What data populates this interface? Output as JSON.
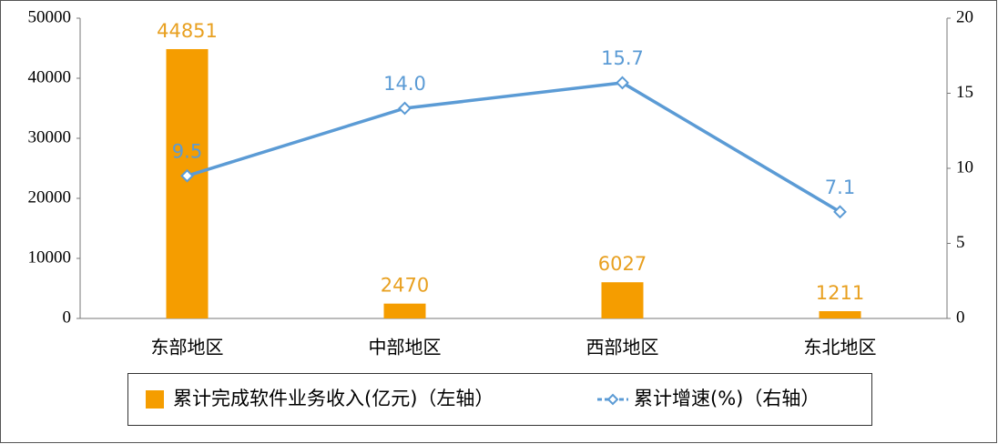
{
  "chart_data": {
    "type": "bar",
    "categories": [
      "东部地区",
      "中部地区",
      "西部地区",
      "东北地区"
    ],
    "series": [
      {
        "name": "累计完成软件业务收入(亿元)（左轴）",
        "type": "bar",
        "color": "#f59d00",
        "values": [
          44851,
          2470,
          6027,
          1211
        ]
      },
      {
        "name": "累计增速(%)（右轴）",
        "type": "line",
        "axis": "y2",
        "color": "#5b9bd5",
        "values": [
          9.5,
          14.0,
          15.7,
          7.1
        ],
        "value_labels": [
          "9.5",
          "14.0",
          "15.7",
          "7.1"
        ]
      }
    ],
    "ylim": [
      0,
      50000
    ],
    "yticks": [
      0,
      10000,
      20000,
      30000,
      40000,
      50000
    ],
    "y2lim": [
      0,
      20
    ],
    "y2ticks": [
      0,
      5,
      10,
      15,
      20
    ],
    "legend": "bottom"
  }
}
